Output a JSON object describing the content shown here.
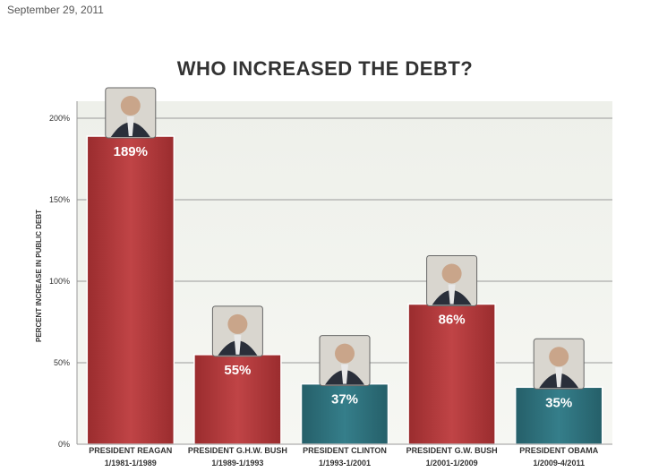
{
  "page": {
    "date": "September 29, 2011"
  },
  "chart_data": {
    "type": "bar",
    "title": "WHO INCREASED THE DEBT?",
    "ylabel": "PERCENT INCREASE IN PUBLIC DEBT",
    "xlabel": "",
    "ylim": [
      0,
      200
    ],
    "ytick_labels": [
      "0%",
      "50%",
      "100%",
      "150%",
      "200%"
    ],
    "categories": [
      {
        "name": "PRESIDENT REAGAN",
        "period": "1/1981-1/1989"
      },
      {
        "name": "PRESIDENT G.H.W. BUSH",
        "period": "1/1989-1/1993"
      },
      {
        "name": "PRESIDENT CLINTON",
        "period": "1/1993-1/2001"
      },
      {
        "name": "PRESIDENT G.W. BUSH",
        "period": "1/2001-1/2009"
      },
      {
        "name": "PRESIDENT OBAMA",
        "period": "1/2009-4/2011"
      }
    ],
    "values": [
      189,
      55,
      37,
      86,
      35
    ],
    "value_labels": [
      "189%",
      "55%",
      "37%",
      "86%",
      "35%"
    ],
    "bar_colors": [
      "#b0393a",
      "#b0393a",
      "#2e6f7a",
      "#b0393a",
      "#2e6f7a"
    ],
    "grid": true,
    "legend": "none"
  }
}
